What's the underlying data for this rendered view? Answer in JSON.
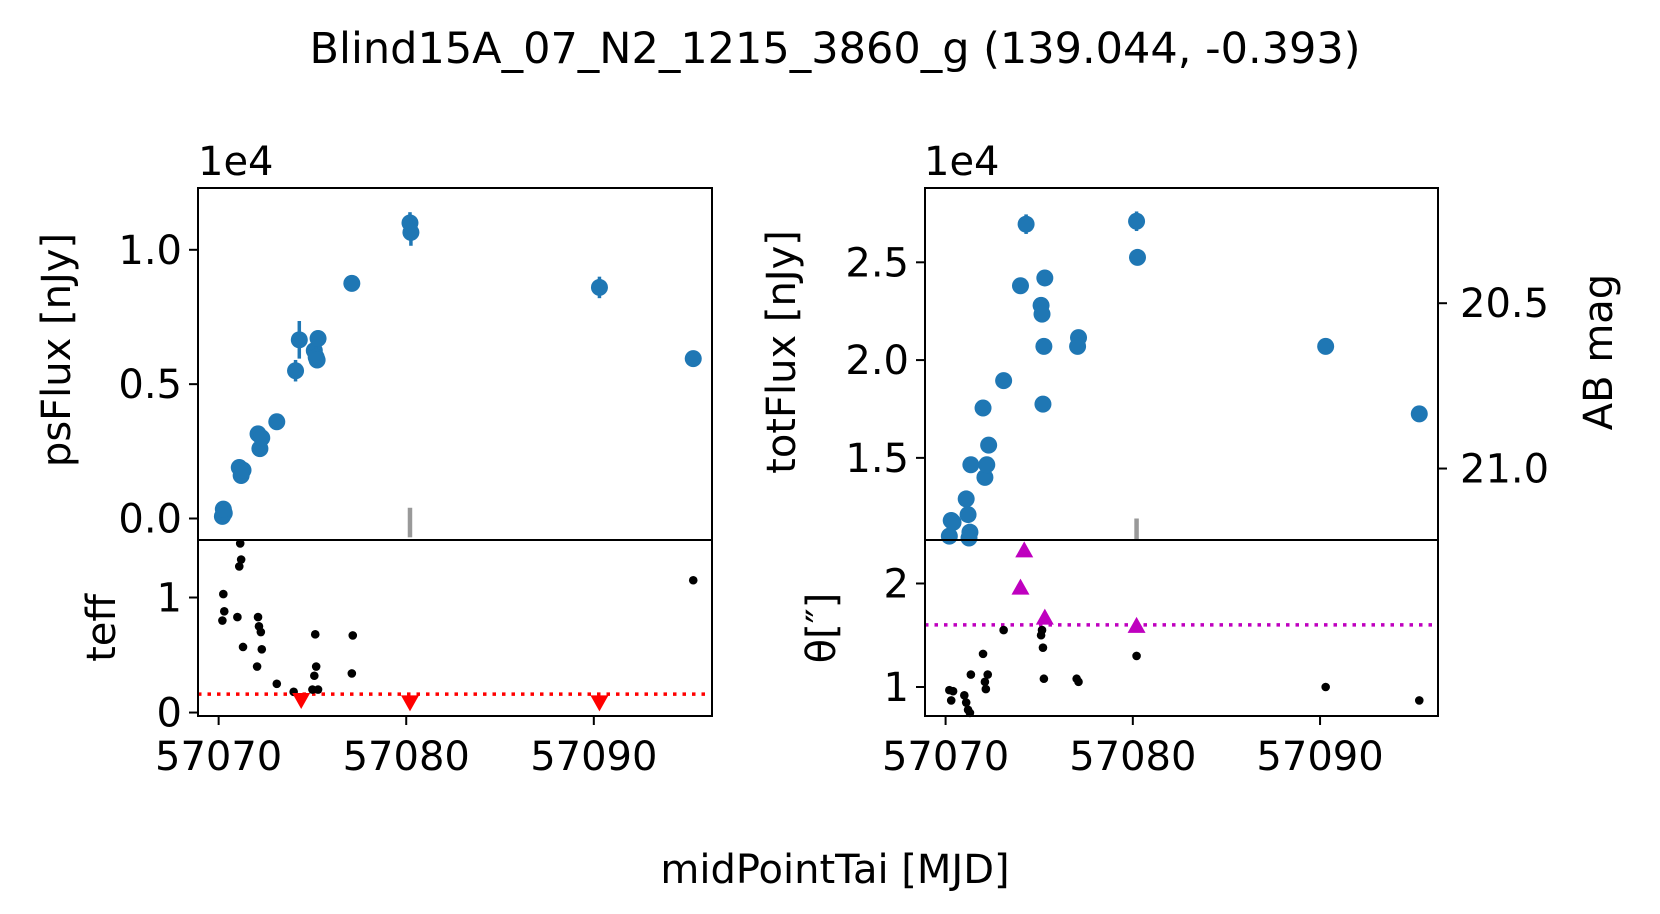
{
  "figure": {
    "title": "Blind15A_07_N2_1215_3860_g (139.044, -0.393)",
    "xlabel": "midPointTai [MJD]"
  },
  "colors": {
    "points": "#1f77b4",
    "marker_line": "#999999",
    "teff_limit": "#ff0000",
    "seeing_limit": "#bf00bf",
    "small_points": "#000000"
  },
  "chart_data": [
    {
      "id": "psflux",
      "type": "scatter",
      "ylabel": "psFlux [nJy]",
      "offset_text": "1e4",
      "scale": 10000,
      "xlim": [
        57068.9,
        57096.3
      ],
      "ylim": [
        -800,
        12300
      ],
      "yticks": [
        0,
        5000,
        10000
      ],
      "ytick_labels": [
        "0.0",
        "0.5",
        "1.0"
      ],
      "marker_x": 57080.2,
      "marker_y": [
        -700,
        400
      ],
      "points": [
        {
          "x": 57070.2,
          "y": 80,
          "err": 300
        },
        {
          "x": 57070.3,
          "y": 200,
          "err": 300
        },
        {
          "x": 57070.25,
          "y": 350,
          "err": 250
        },
        {
          "x": 57071.1,
          "y": 1900,
          "err": 250
        },
        {
          "x": 57071.2,
          "y": 1600,
          "err": 250
        },
        {
          "x": 57071.3,
          "y": 1800,
          "err": 250
        },
        {
          "x": 57072.1,
          "y": 3150,
          "err": 300
        },
        {
          "x": 57072.2,
          "y": 2600,
          "err": 300
        },
        {
          "x": 57072.3,
          "y": 3000,
          "err": 300
        },
        {
          "x": 57073.1,
          "y": 3600,
          "err": 300
        },
        {
          "x": 57074.1,
          "y": 5500,
          "err": 400
        },
        {
          "x": 57074.3,
          "y": 6650,
          "err": 700
        },
        {
          "x": 57075.1,
          "y": 6250,
          "err": 500
        },
        {
          "x": 57075.2,
          "y": 6000,
          "err": 400
        },
        {
          "x": 57075.3,
          "y": 6700,
          "err": 300
        },
        {
          "x": 57075.25,
          "y": 5900,
          "err": 300
        },
        {
          "x": 57077.1,
          "y": 8750,
          "err": 250
        },
        {
          "x": 57080.2,
          "y": 11000,
          "err": 400
        },
        {
          "x": 57080.25,
          "y": 10650,
          "err": 500
        },
        {
          "x": 57090.3,
          "y": 8600,
          "err": 400
        },
        {
          "x": 57095.3,
          "y": 5950,
          "err": 200
        }
      ]
    },
    {
      "id": "teff",
      "type": "scatter",
      "ylabel": "teff",
      "xlim": [
        57068.9,
        57096.3
      ],
      "ylim": [
        -0.03,
        1.5
      ],
      "yticks": [
        0,
        1
      ],
      "ytick_labels": [
        "0",
        "1"
      ],
      "xticks": [
        57070,
        57080,
        57090
      ],
      "xtick_labels": [
        "57070",
        "57080",
        "57090"
      ],
      "limit_line": 0.16,
      "points": [
        {
          "x": 57070.2,
          "y": 0.8
        },
        {
          "x": 57070.25,
          "y": 1.03
        },
        {
          "x": 57070.3,
          "y": 0.88
        },
        {
          "x": 57071.0,
          "y": 0.83
        },
        {
          "x": 57071.1,
          "y": 1.27
        },
        {
          "x": 57071.15,
          "y": 1.47
        },
        {
          "x": 57071.2,
          "y": 1.33
        },
        {
          "x": 57071.3,
          "y": 0.57
        },
        {
          "x": 57072.1,
          "y": 0.83
        },
        {
          "x": 57072.15,
          "y": 0.75
        },
        {
          "x": 57072.25,
          "y": 0.7
        },
        {
          "x": 57072.3,
          "y": 0.55
        },
        {
          "x": 57072.05,
          "y": 0.4
        },
        {
          "x": 57073.1,
          "y": 0.25
        },
        {
          "x": 57074.0,
          "y": 0.18
        },
        {
          "x": 57075.0,
          "y": 0.2
        },
        {
          "x": 57075.1,
          "y": 0.32
        },
        {
          "x": 57075.2,
          "y": 0.4
        },
        {
          "x": 57075.15,
          "y": 0.68
        },
        {
          "x": 57075.3,
          "y": 0.2
        },
        {
          "x": 57077.1,
          "y": 0.34
        },
        {
          "x": 57077.15,
          "y": 0.67
        },
        {
          "x": 57095.3,
          "y": 1.15
        }
      ],
      "limits": [
        {
          "x": 57074.4,
          "y": 0.1
        },
        {
          "x": 57080.2,
          "y": 0.08
        },
        {
          "x": 57090.3,
          "y": 0.08
        }
      ]
    },
    {
      "id": "totflux",
      "type": "scatter",
      "ylabel": "totFlux [nJy]",
      "y2label": "AB mag",
      "offset_text": "1e4",
      "scale": 10000,
      "xlim": [
        57068.9,
        57096.3
      ],
      "ylim": [
        10800,
        28800
      ],
      "yticks": [
        15000,
        20000,
        25000
      ],
      "ytick_labels": [
        "1.5",
        "2.0",
        "2.5"
      ],
      "y2ticks": [
        20.5,
        21.0
      ],
      "y2tick_labels": [
        "20.5",
        "21.0"
      ],
      "marker_x": 57080.2,
      "marker_y": [
        10800,
        11900
      ],
      "points": [
        {
          "x": 57070.2,
          "y": 11000,
          "err": 200
        },
        {
          "x": 57070.3,
          "y": 11800,
          "err": 200
        },
        {
          "x": 57070.4,
          "y": 11700,
          "err": 200
        },
        {
          "x": 57071.1,
          "y": 12900,
          "err": 200
        },
        {
          "x": 57071.2,
          "y": 12100,
          "err": 200
        },
        {
          "x": 57071.3,
          "y": 11200,
          "err": 200
        },
        {
          "x": 57071.25,
          "y": 10900,
          "err": 200
        },
        {
          "x": 57071.35,
          "y": 14650,
          "err": 200
        },
        {
          "x": 57072.1,
          "y": 14000,
          "err": 200
        },
        {
          "x": 57072.2,
          "y": 14650,
          "err": 200
        },
        {
          "x": 57072.3,
          "y": 15650,
          "err": 200
        },
        {
          "x": 57072.0,
          "y": 17550,
          "err": 200
        },
        {
          "x": 57073.1,
          "y": 18950,
          "err": 200
        },
        {
          "x": 57074.0,
          "y": 23800,
          "err": 400
        },
        {
          "x": 57074.3,
          "y": 26950,
          "err": 500
        },
        {
          "x": 57075.1,
          "y": 22800,
          "err": 300
        },
        {
          "x": 57075.15,
          "y": 22350,
          "err": 300
        },
        {
          "x": 57075.3,
          "y": 24200,
          "err": 300
        },
        {
          "x": 57075.25,
          "y": 20700,
          "err": 300
        },
        {
          "x": 57075.2,
          "y": 17750,
          "err": 300
        },
        {
          "x": 57077.1,
          "y": 21150,
          "err": 300
        },
        {
          "x": 57077.05,
          "y": 20700,
          "err": 300
        },
        {
          "x": 57080.2,
          "y": 27100,
          "err": 500
        },
        {
          "x": 57080.25,
          "y": 25250,
          "err": 400
        },
        {
          "x": 57090.3,
          "y": 20700,
          "err": 400
        },
        {
          "x": 57095.3,
          "y": 17250,
          "err": 200
        }
      ]
    },
    {
      "id": "seeing",
      "type": "scatter",
      "ylabel": "θ[″]",
      "xlim": [
        57068.9,
        57096.3
      ],
      "ylim": [
        0.72,
        2.42
      ],
      "yticks": [
        1,
        2
      ],
      "ytick_labels": [
        "1",
        "2"
      ],
      "xticks": [
        57070,
        57080,
        57090
      ],
      "xtick_labels": [
        "57070",
        "57080",
        "57090"
      ],
      "limit_line": 1.6,
      "points": [
        {
          "x": 57070.2,
          "y": 0.97
        },
        {
          "x": 57070.3,
          "y": 0.87
        },
        {
          "x": 57070.4,
          "y": 0.96
        },
        {
          "x": 57071.0,
          "y": 0.92
        },
        {
          "x": 57071.1,
          "y": 0.85
        },
        {
          "x": 57071.2,
          "y": 0.78
        },
        {
          "x": 57071.3,
          "y": 0.75
        },
        {
          "x": 57071.35,
          "y": 1.12
        },
        {
          "x": 57072.0,
          "y": 1.32
        },
        {
          "x": 57072.1,
          "y": 1.05
        },
        {
          "x": 57072.15,
          "y": 0.98
        },
        {
          "x": 57072.25,
          "y": 1.12
        },
        {
          "x": 57073.1,
          "y": 1.55
        },
        {
          "x": 57075.1,
          "y": 1.5
        },
        {
          "x": 57075.15,
          "y": 1.55
        },
        {
          "x": 57075.2,
          "y": 1.38
        },
        {
          "x": 57075.25,
          "y": 1.08
        },
        {
          "x": 57077.0,
          "y": 1.08
        },
        {
          "x": 57077.1,
          "y": 1.05
        },
        {
          "x": 57080.2,
          "y": 1.3
        },
        {
          "x": 57090.3,
          "y": 1.0
        },
        {
          "x": 57095.3,
          "y": 0.87
        }
      ],
      "flagged": [
        {
          "x": 57074.2,
          "y": 2.33
        },
        {
          "x": 57074.0,
          "y": 1.97
        },
        {
          "x": 57075.3,
          "y": 1.68
        },
        {
          "x": 57080.2,
          "y": 1.6
        }
      ]
    }
  ]
}
